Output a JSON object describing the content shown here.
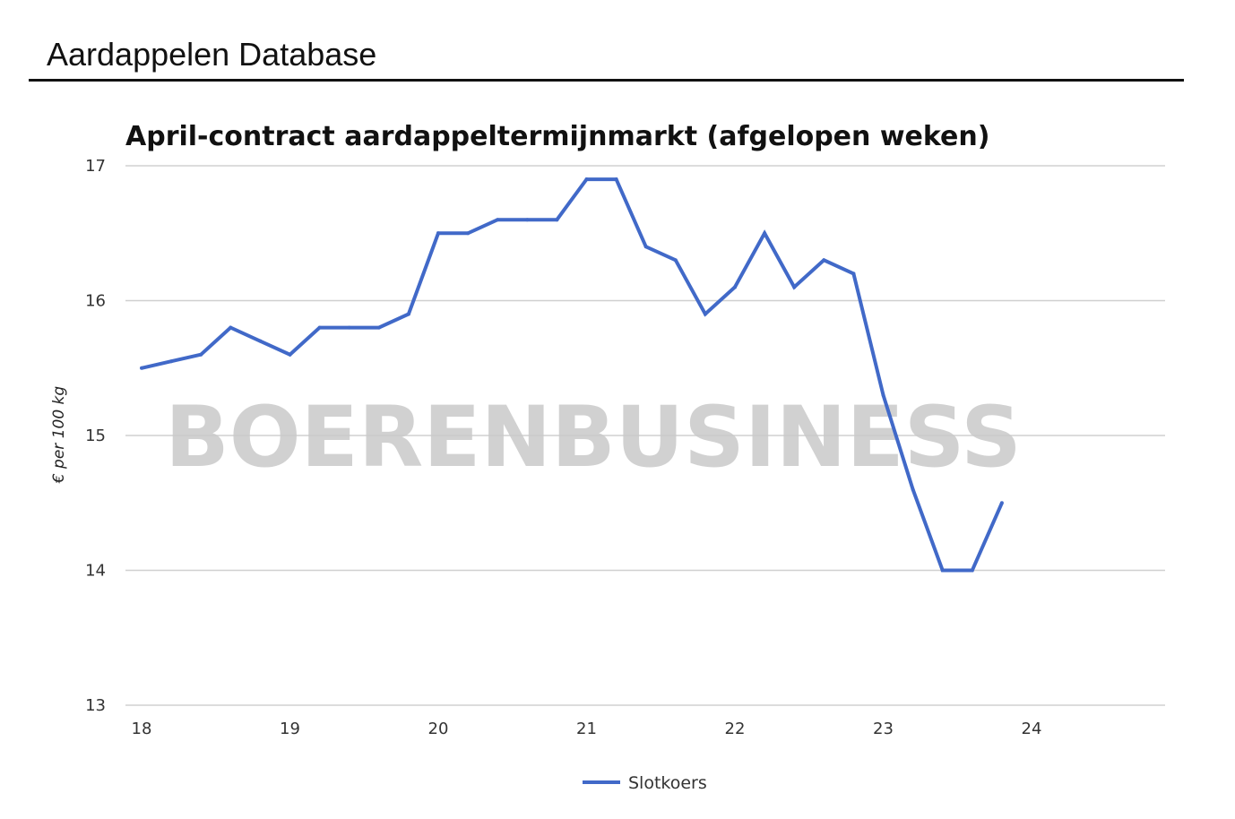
{
  "header": {
    "title": "Aardappelen Database"
  },
  "watermark": "BOERENBUSINESS",
  "colors": {
    "series": "#4169c8",
    "grid": "#d0d0d0",
    "watermark": "#c9c9c9"
  },
  "chart_data": {
    "type": "line",
    "title": "April-contract aardappeltermijnmarkt (afgelopen weken)",
    "xlabel": "",
    "ylabel": "€ per 100 kg",
    "xlim": [
      18,
      25
    ],
    "ylim": [
      13,
      17
    ],
    "xticks": [
      "18",
      "19",
      "20",
      "21",
      "22",
      "23",
      "24"
    ],
    "yticks": [
      "13",
      "14",
      "15",
      "16",
      "17"
    ],
    "grid": true,
    "legend_position": "bottom",
    "series": [
      {
        "name": "Slotkoers",
        "color": "#4169c8",
        "x": [
          18.0,
          18.2,
          18.4,
          18.6,
          18.8,
          19.0,
          19.2,
          19.4,
          19.6,
          19.8,
          20.0,
          20.2,
          20.4,
          20.6,
          20.8,
          21.0,
          21.2,
          21.4,
          21.6,
          21.8,
          22.0,
          22.2,
          22.4,
          22.6,
          22.8,
          23.0,
          23.2,
          23.4,
          23.6,
          23.8
        ],
        "y": [
          15.5,
          15.55,
          15.6,
          15.8,
          15.7,
          15.6,
          15.8,
          15.8,
          15.8,
          15.9,
          16.5,
          16.5,
          16.6,
          16.6,
          16.6,
          16.9,
          16.9,
          16.4,
          16.3,
          15.9,
          16.1,
          16.5,
          16.1,
          16.3,
          16.2,
          15.3,
          14.6,
          14.0,
          14.0,
          14.5
        ]
      }
    ]
  }
}
